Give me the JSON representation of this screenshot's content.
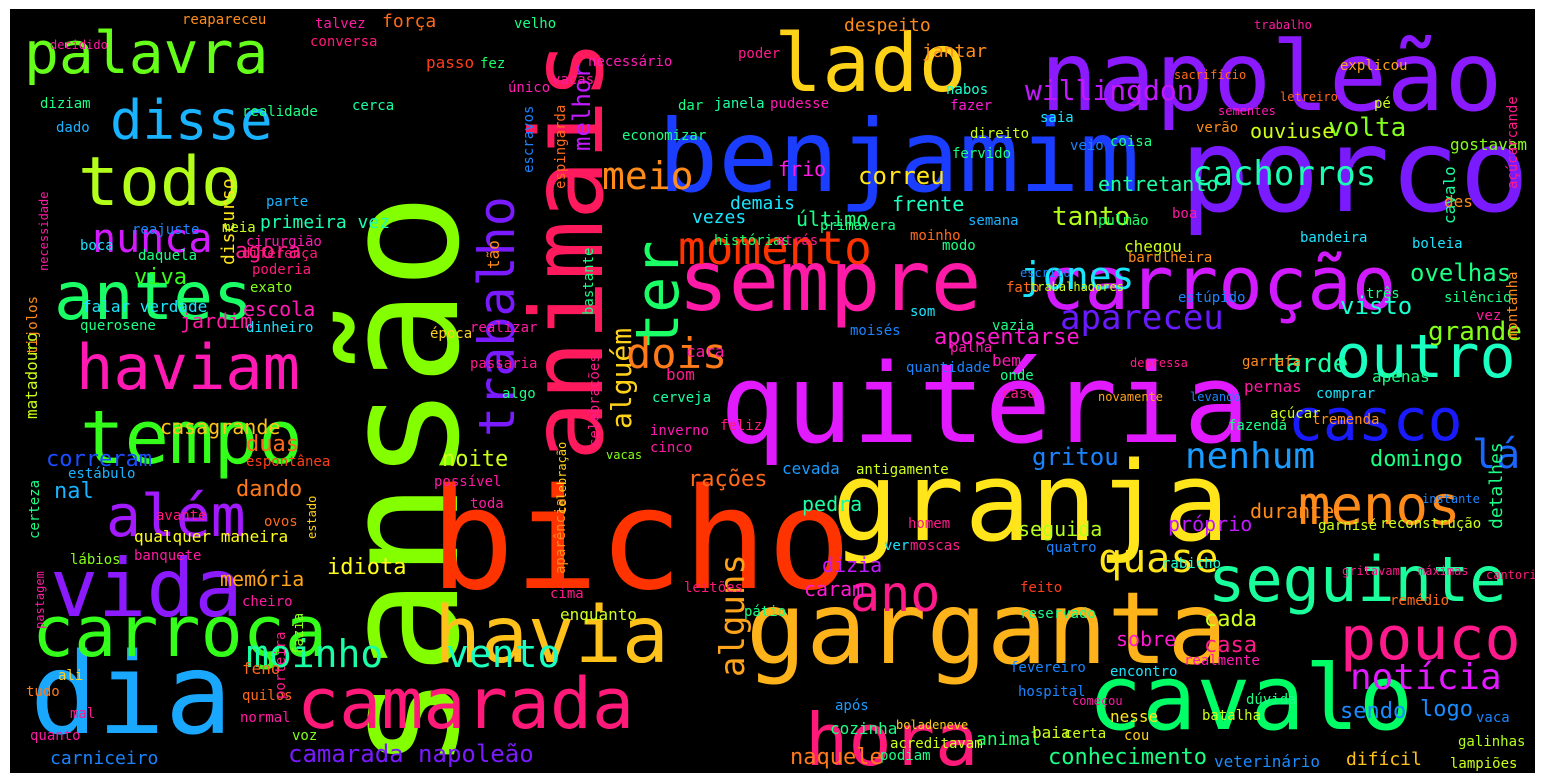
{
  "words": [
    {
      "text": "sansão",
      "color": "#84ff00"
    },
    {
      "text": "animais",
      "color": "#ff1a5e"
    },
    {
      "text": "bicho",
      "color": "#ff3300"
    },
    {
      "text": "napoleão",
      "color": "#8c1aff"
    },
    {
      "text": "porco",
      "color": "#7a1aff"
    },
    {
      "text": "benjamim",
      "color": "#1a3dff"
    },
    {
      "text": "quitéria",
      "color": "#e21aff"
    },
    {
      "text": "granja",
      "color": "#ffe51a"
    },
    {
      "text": "garganta",
      "color": "#ffb31a"
    },
    {
      "text": "dia",
      "color": "#1aa8ff"
    },
    {
      "text": "camarada",
      "color": "#ff1a7a"
    },
    {
      "text": "cavalo",
      "color": "#00ff66"
    },
    {
      "text": "lado",
      "color": "#ffd21a"
    },
    {
      "text": "sempre",
      "color": "#ff1aa8"
    },
    {
      "text": "carroção",
      "color": "#d21aff"
    },
    {
      "text": "vida",
      "color": "#8c1aff"
    },
    {
      "text": "carroça",
      "color": "#33ff1a"
    },
    {
      "text": "tempo",
      "color": "#33ff1a"
    },
    {
      "text": "havia",
      "color": "#ffc21a"
    },
    {
      "text": "hora",
      "color": "#ff1a7a"
    },
    {
      "text": "palavra",
      "color": "#66ff1a"
    },
    {
      "text": "todo",
      "color": "#b3ff1a"
    },
    {
      "text": "antes",
      "color": "#1aff66"
    },
    {
      "text": "haviam",
      "color": "#ff1ab3"
    },
    {
      "text": "disse",
      "color": "#1ab3ff"
    },
    {
      "text": "além",
      "color": "#a31aff"
    },
    {
      "text": "momento",
      "color": "#ff3300"
    },
    {
      "text": "seguinte",
      "color": "#1aff9c"
    },
    {
      "text": "pouco",
      "color": "#ff1a8c"
    },
    {
      "text": "outro",
      "color": "#1affc2"
    },
    {
      "text": "casco",
      "color": "#1a1aff"
    },
    {
      "text": "menos",
      "color": "#ff8c1a"
    },
    {
      "text": "ano",
      "color": "#ff1a8c"
    },
    {
      "text": "trabalho",
      "color": "#7a1aff"
    },
    {
      "text": "ter",
      "color": "#1aff66"
    },
    {
      "text": "nunca",
      "color": "#d21aff"
    },
    {
      "text": "cachorros",
      "color": "#1affb3"
    },
    {
      "text": "alguém",
      "color": "#ffd21a"
    },
    {
      "text": "alguns",
      "color": "#ffa31a"
    },
    {
      "text": "moinho",
      "color": "#1affa3"
    },
    {
      "text": "vento",
      "color": "#1affc2"
    },
    {
      "text": "notícia",
      "color": "#e21aff"
    },
    {
      "text": "jones",
      "color": "#1ae5ff"
    },
    {
      "text": "nenhum",
      "color": "#1a9cff"
    },
    {
      "text": "dois",
      "color": "#ff7a1a"
    },
    {
      "text": "quase",
      "color": "#ffe51a"
    },
    {
      "text": "apareceu",
      "color": "#6a1aff"
    },
    {
      "text": "willingdon",
      "color": "#c21aff"
    },
    {
      "text": "meio",
      "color": "#ff8c1a"
    },
    {
      "text": "melhor",
      "color": "#c21aff"
    },
    {
      "text": "volta",
      "color": "#84ff1a"
    },
    {
      "text": "correu",
      "color": "#ffe51a"
    },
    {
      "text": "tanto",
      "color": "#b3ff1a"
    },
    {
      "text": "lá",
      "color": "#1a66ff"
    },
    {
      "text": "grande",
      "color": "#84ff1a"
    },
    {
      "text": "tarde",
      "color": "#1affa3"
    },
    {
      "text": "visto",
      "color": "#1affd2"
    },
    {
      "text": "ovelhas",
      "color": "#1aff84"
    },
    {
      "text": "camarada napoleão",
      "color": "#7a1aff"
    },
    {
      "text": "gritou",
      "color": "#1a84ff"
    },
    {
      "text": "viva",
      "color": "#33ff1a"
    },
    {
      "text": "agora",
      "color": "#ff1a8c"
    },
    {
      "text": "escola",
      "color": "#ff1ab3"
    },
    {
      "text": "jardim",
      "color": "#ff1aa3"
    },
    {
      "text": "casagrande",
      "color": "#ffc21a"
    },
    {
      "text": "noite",
      "color": "#ccff1a"
    },
    {
      "text": "duas",
      "color": "#ff6a1a"
    },
    {
      "text": "dando",
      "color": "#ff7a1a"
    },
    {
      "text": "correram",
      "color": "#1a4dff"
    },
    {
      "text": "nal",
      "color": "#1ab3ff"
    },
    {
      "text": "idiota",
      "color": "#ffff1a"
    },
    {
      "text": "memória",
      "color": "#ffa31a"
    },
    {
      "text": "sendo",
      "color": "#1a8cff"
    },
    {
      "text": "logo",
      "color": "#1a8cff"
    },
    {
      "text": "animal",
      "color": "#1aff66"
    },
    {
      "text": "naquele",
      "color": "#ff7a1a"
    },
    {
      "text": "conhecimento",
      "color": "#1aff84"
    },
    {
      "text": "cada",
      "color": "#ccff1a"
    },
    {
      "text": "casa",
      "color": "#ff1a8c"
    },
    {
      "text": "aposentarse",
      "color": "#ff1ad2"
    },
    {
      "text": "rações",
      "color": "#ff6a1a"
    },
    {
      "text": "domingo",
      "color": "#1aff84"
    },
    {
      "text": "pedra",
      "color": "#1affa3"
    },
    {
      "text": "seguida",
      "color": "#b3ff1a"
    },
    {
      "text": "dizia",
      "color": "#c21aff"
    },
    {
      "text": "caram",
      "color": "#ff1ad2"
    },
    {
      "text": "sobre",
      "color": "#ff1ad2"
    },
    {
      "text": "durante",
      "color": "#ff8c1a"
    },
    {
      "text": "próprio",
      "color": "#c21aff"
    },
    {
      "text": "ouviuse",
      "color": "#ccff1a"
    },
    {
      "text": "entretanto",
      "color": "#1affa3"
    },
    {
      "text": "frente",
      "color": "#1affc2"
    },
    {
      "text": "frio",
      "color": "#ff1ae5"
    },
    {
      "text": "último",
      "color": "#1aff84"
    },
    {
      "text": "demais",
      "color": "#1ae5ff"
    },
    {
      "text": "vezes",
      "color": "#1ae5ff"
    },
    {
      "text": "primeira vez",
      "color": "#1affb3"
    },
    {
      "text": "discurso",
      "color": "#ffe51a"
    },
    {
      "text": "cavalo",
      "color": "#1affa3"
    },
    {
      "text": "carniceiro",
      "color": "#1a84ff"
    },
    {
      "text": "veterinário",
      "color": "#1a8cff"
    },
    {
      "text": "difícil",
      "color": "#ffc21a"
    },
    {
      "text": "lampiões",
      "color": "#ccff1a"
    },
    {
      "text": "galinhas",
      "color": "#b3ff1a"
    },
    {
      "text": "qualquer maneira",
      "color": "#ffff1a"
    },
    {
      "text": "falar verdade",
      "color": "#1ae5ff"
    },
    {
      "text": "matadouro",
      "color": "#ccff1a"
    },
    {
      "text": "talvez",
      "color": "#ff1aa3"
    },
    {
      "text": "força",
      "color": "#ff6a1a"
    },
    {
      "text": "despeito",
      "color": "#ff8c1a"
    },
    {
      "text": "jantar",
      "color": "#ff8c1a"
    },
    {
      "text": "gostavam",
      "color": "#84ff1a"
    },
    {
      "text": "reapareceu",
      "color": "#ff8c1a"
    },
    {
      "text": "velho",
      "color": "#1aff84"
    },
    {
      "text": "pé",
      "color": "#ccff1a"
    },
    {
      "text": "explicou",
      "color": "#ffa31a"
    },
    {
      "text": "fez",
      "color": "#1aff66"
    },
    {
      "text": "passo",
      "color": "#ff3d1a"
    },
    {
      "text": "conversa",
      "color": "#ff1a7a"
    },
    {
      "text": "diziam",
      "color": "#1aff84"
    },
    {
      "text": "realidade",
      "color": "#1aff84"
    },
    {
      "text": "dado",
      "color": "#1ab3ff"
    },
    {
      "text": "cerca",
      "color": "#1affa3"
    },
    {
      "text": "nabos",
      "color": "#1affd2"
    },
    {
      "text": "fazer",
      "color": "#ff1ad2"
    },
    {
      "text": "saia",
      "color": "#1ae5ff"
    },
    {
      "text": "fervido",
      "color": "#1aff84"
    },
    {
      "text": "direito",
      "color": "#ccff1a"
    },
    {
      "text": "verão",
      "color": "#ff8c1a"
    },
    {
      "text": "dar",
      "color": "#1aff84"
    },
    {
      "text": "vacas",
      "color": "#ff1aa3"
    },
    {
      "text": "necessário",
      "color": "#ff1ab3"
    },
    {
      "text": "poder",
      "color": "#ff1a8c"
    },
    {
      "text": "janela",
      "color": "#1affa3"
    },
    {
      "text": "pudesse",
      "color": "#ff1ab3"
    },
    {
      "text": "economizar",
      "color": "#1aff84"
    },
    {
      "text": "primavera",
      "color": "#1aff84"
    },
    {
      "text": "moinho",
      "color": "#ff6a1a"
    },
    {
      "text": "semana",
      "color": "#1ab3ff"
    },
    {
      "text": "pulmão",
      "color": "#1aff66"
    },
    {
      "text": "histórias",
      "color": "#1aff66"
    },
    {
      "text": "atrás",
      "color": "#ff1a8c"
    },
    {
      "text": "bom",
      "color": "#ff1a8c"
    },
    {
      "text": "cara",
      "color": "#ff1aa3"
    },
    {
      "text": "bem",
      "color": "#ff1ab3"
    },
    {
      "text": "cerveja",
      "color": "#1affa3"
    },
    {
      "text": "feliz",
      "color": "#ff1a7a"
    },
    {
      "text": "cevada",
      "color": "#1a9cff"
    },
    {
      "text": "antigamente",
      "color": "#ccff1a"
    },
    {
      "text": "pernas",
      "color": "#ff1aa3"
    },
    {
      "text": "apenas",
      "color": "#1aff84"
    },
    {
      "text": "feno",
      "color": "#ff6a1a"
    },
    {
      "text": "cozinha",
      "color": "#1aff84"
    },
    {
      "text": "após",
      "color": "#1a9cff"
    },
    {
      "text": "baia",
      "color": "#ccff1a"
    },
    {
      "text": "nesse",
      "color": "#ffe51a"
    },
    {
      "text": "batalha",
      "color": "#ccff1a"
    },
    {
      "text": "reservado",
      "color": "#1aff84"
    },
    {
      "text": "reconstrução",
      "color": "#ccff1a"
    },
    {
      "text": "garnisé",
      "color": "#ccff1a"
    },
    {
      "text": "ali",
      "color": "#ffd21a"
    },
    {
      "text": "tudo",
      "color": "#ff7a1a"
    },
    {
      "text": "voz",
      "color": "#84ff1a"
    },
    {
      "text": "normal",
      "color": "#ff1aa3"
    },
    {
      "text": "quilos",
      "color": "#ff6a1a"
    },
    {
      "text": "enquanto",
      "color": "#ccff1a"
    },
    {
      "text": "cima",
      "color": "#ff1a8c"
    },
    {
      "text": "leitões",
      "color": "#ff1a7a"
    },
    {
      "text": "toda",
      "color": "#ff1aa3"
    },
    {
      "text": "possível",
      "color": "#ff1aa3"
    },
    {
      "text": "cheiro",
      "color": "#ff1aa3"
    },
    {
      "text": "certeza",
      "color": "#1aff84"
    },
    {
      "text": "estábulo",
      "color": "#1ab3ff"
    },
    {
      "text": "lábios",
      "color": "#84ff1a"
    },
    {
      "text": "querosene",
      "color": "#1aff84"
    },
    {
      "text": "dinheiro",
      "color": "#1ae5ff"
    },
    {
      "text": "época",
      "color": "#ffd21a"
    },
    {
      "text": "passaria",
      "color": "#ff1a8c"
    },
    {
      "text": "realizar",
      "color": "#ff1aa3"
    },
    {
      "text": "espontânea",
      "color": "#ff3d1a"
    },
    {
      "text": "exato",
      "color": "#84ff1a"
    },
    {
      "text": "poderia",
      "color": "#ff1a7a"
    },
    {
      "text": "diferença",
      "color": "#ff1a7a"
    },
    {
      "text": "cirurgião",
      "color": "#ff1ab3"
    },
    {
      "text": "daquela",
      "color": "#1aff84"
    },
    {
      "text": "necessidade",
      "color": "#ff1aa3"
    },
    {
      "text": "parte",
      "color": "#1ab3ff"
    },
    {
      "text": "meia",
      "color": "#ccff1a"
    },
    {
      "text": "boca",
      "color": "#1ae5ff"
    },
    {
      "text": "tijolos",
      "color": "#ff8c1a"
    },
    {
      "text": "algo",
      "color": "#1aff84"
    },
    {
      "text": "quantidade",
      "color": "#1a84ff"
    },
    {
      "text": "palha",
      "color": "#ff1ab3"
    },
    {
      "text": "moisés",
      "color": "#1a84ff"
    },
    {
      "text": "vazia",
      "color": "#1aff84"
    },
    {
      "text": "onde",
      "color": "#1aff84"
    },
    {
      "text": "garrafa",
      "color": "#ff8c1a"
    },
    {
      "text": "comprar",
      "color": "#1ae5ff"
    },
    {
      "text": "fazenda",
      "color": "#1aff84"
    },
    {
      "text": "três",
      "color": "#1aff84"
    },
    {
      "text": "estúpido",
      "color": "#1a84ff"
    },
    {
      "text": "bandeira",
      "color": "#1ae5ff"
    },
    {
      "text": "chegou",
      "color": "#ccff1a"
    },
    {
      "text": "boa",
      "color": "#ff1aa3"
    },
    {
      "text": "tremenda",
      "color": "#ff8c1a"
    },
    {
      "text": "açúcar",
      "color": "#ccff1a"
    },
    {
      "text": "ver",
      "color": "#1ae5ff"
    },
    {
      "text": "homem",
      "color": "#ff1a8c"
    },
    {
      "text": "encontro",
      "color": "#1ae5ff"
    },
    {
      "text": "quatro",
      "color": "#1a84ff"
    },
    {
      "text": "feito",
      "color": "#ff3d1a"
    },
    {
      "text": "rabicho",
      "color": "#1affd2"
    },
    {
      "text": "remédio",
      "color": "#ff6a1a"
    },
    {
      "text": "cantoria",
      "color": "#ff1a7a"
    },
    {
      "text": "gritavam",
      "color": "#ff1a8c"
    },
    {
      "text": "máximas",
      "color": "#ff1a8c"
    },
    {
      "text": "realmente",
      "color": "#ff1ab3"
    },
    {
      "text": "mal",
      "color": "#ff1a8c"
    },
    {
      "text": "podiam",
      "color": "#1aff84"
    },
    {
      "text": "fevereiro",
      "color": "#1a84ff"
    },
    {
      "text": "hospital",
      "color": "#1a84ff"
    },
    {
      "text": "acreditavam",
      "color": "#ccff1a"
    },
    {
      "text": "certa",
      "color": "#ccff1a"
    },
    {
      "text": "boladeneve",
      "color": "#ffd21a"
    },
    {
      "text": "dúvida",
      "color": "#1aff84"
    },
    {
      "text": "detalhes",
      "color": "#1aff84"
    },
    {
      "text": "montanha",
      "color": "#ff8c1a"
    },
    {
      "text": "açúcarcande",
      "color": "#ff1a8c"
    },
    {
      "text": "silêncio",
      "color": "#1aff84"
    },
    {
      "text": "vez",
      "color": "#ff1aa3"
    },
    {
      "text": "des",
      "color": "#ff8c1a"
    },
    {
      "text": "boleia",
      "color": "#1ae5ff"
    },
    {
      "text": "instante",
      "color": "#1a84ff"
    },
    {
      "text": "único",
      "color": "#ff1ab3"
    },
    {
      "text": "escravos",
      "color": "#1a84ff"
    },
    {
      "text": "espingarda",
      "color": "#ff6a1a"
    },
    {
      "text": "sacrifício",
      "color": "#ff6a1a"
    },
    {
      "text": "sementes",
      "color": "#ff1ab3"
    },
    {
      "text": "letreiro",
      "color": "#ff6a1a"
    },
    {
      "text": "coisa",
      "color": "#1aff84"
    },
    {
      "text": "veio",
      "color": "#1a84ff"
    },
    {
      "text": "celebrações",
      "color": "#ff1a8c"
    },
    {
      "text": "aparência",
      "color": "#ff8c1a"
    },
    {
      "text": "celebração",
      "color": "#ffd21a"
    },
    {
      "text": "porteira",
      "color": "#ff1a8c"
    },
    {
      "text": "fazia",
      "color": "#84ff1a"
    },
    {
      "text": "avante",
      "color": "#ff1a7a"
    },
    {
      "text": "ovos",
      "color": "#ff6a1a"
    },
    {
      "text": "banquete",
      "color": "#ff1aa3"
    },
    {
      "text": "reajuste",
      "color": "#1a84ff"
    },
    {
      "text": "quanto",
      "color": "#ff1aa3"
    },
    {
      "text": "estado",
      "color": "#ffd21a"
    },
    {
      "text": "pastagem",
      "color": "#ff1aa3"
    },
    {
      "text": "cinco",
      "color": "#ff1aa3"
    },
    {
      "text": "inverno",
      "color": "#ff1ab3"
    },
    {
      "text": "tão",
      "color": "#ff8c1a"
    },
    {
      "text": "bastante",
      "color": "#1aff84"
    },
    {
      "text": "modo",
      "color": "#1aff84"
    },
    {
      "text": "moscas",
      "color": "#ff1a8c"
    },
    {
      "text": "pátio",
      "color": "#1aff84"
    },
    {
      "text": "vaca",
      "color": "#1a84ff"
    },
    {
      "text": "vacas",
      "color": "#84ff1a"
    },
    {
      "text": "barulheira",
      "color": "#ff8c1a"
    },
    {
      "text": "caso",
      "color": "#ff1a8c"
    },
    {
      "text": "escrito",
      "color": "#1a84ff"
    },
    {
      "text": "depressa",
      "color": "#ff1a8c"
    },
    {
      "text": "levando",
      "color": "#1a84ff"
    },
    {
      "text": "novamente",
      "color": "#ffa31a"
    },
    {
      "text": "fato",
      "color": "#ff6a1a"
    },
    {
      "text": "som",
      "color": "#1ae5ff"
    },
    {
      "text": "trabalhadores",
      "color": "#ccff1a"
    },
    {
      "text": "trabalho",
      "color": "#ff1aa3"
    },
    {
      "text": "começou",
      "color": "#ff1aa3"
    },
    {
      "text": "cou",
      "color": "#ffd21a"
    },
    {
      "text": "decidido",
      "color": "#ff1aa3"
    }
  ]
}
